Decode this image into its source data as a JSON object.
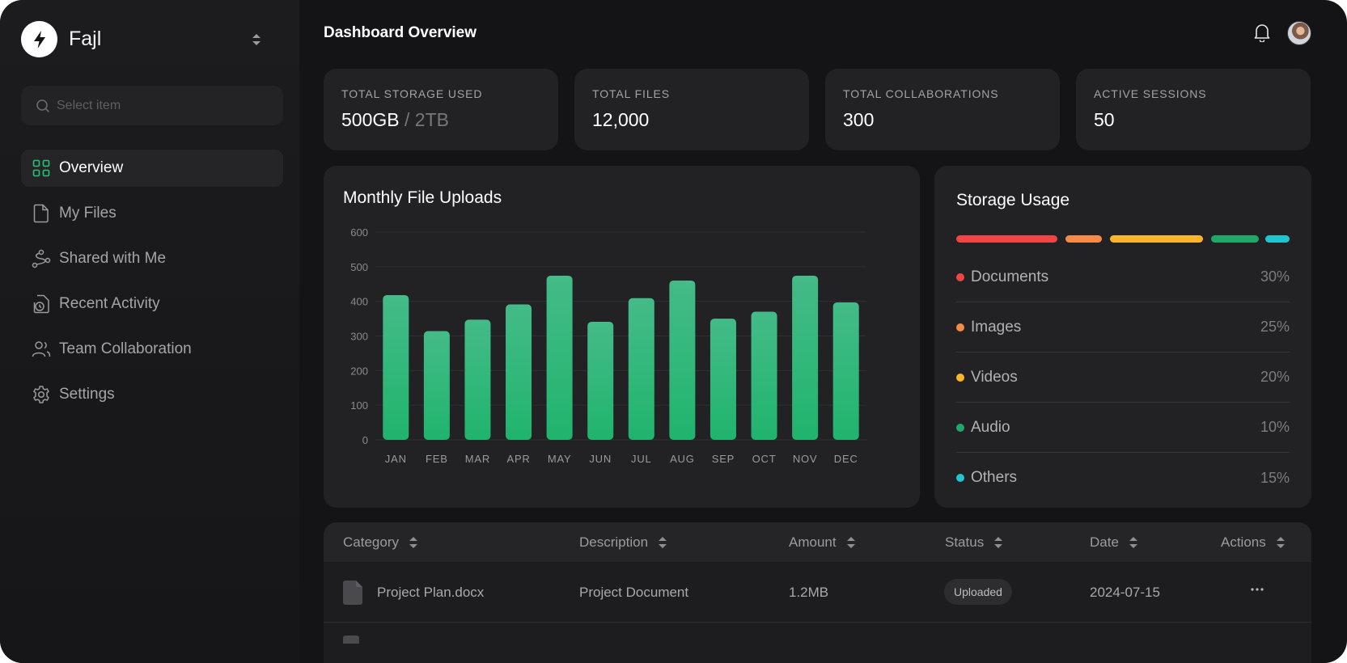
{
  "brand": {
    "name": "Fajl"
  },
  "search": {
    "placeholder": "Select item"
  },
  "nav": [
    {
      "label": "Overview",
      "icon": "grid-icon",
      "active": true
    },
    {
      "label": "My Files",
      "icon": "file-icon"
    },
    {
      "label": "Shared with Me",
      "icon": "share-icon"
    },
    {
      "label": "Recent Activity",
      "icon": "clock-file-icon"
    },
    {
      "label": "Team Collaboration",
      "icon": "users-icon"
    },
    {
      "label": "Settings",
      "icon": "gear-icon"
    }
  ],
  "header": {
    "title": "Dashboard Overview"
  },
  "stats": [
    {
      "label": "TOTAL STORAGE USED",
      "value": "500GB",
      "sub": "/ 2TB"
    },
    {
      "label": "TOTAL FILES",
      "value": "12,000"
    },
    {
      "label": "TOTAL COLLABORATIONS",
      "value": "300"
    },
    {
      "label": "ACTIVE SESSIONS",
      "value": "50"
    }
  ],
  "chart_data": {
    "type": "bar",
    "title": "Monthly File Uploads",
    "categories": [
      "JAN",
      "FEB",
      "MAR",
      "APR",
      "MAY",
      "JUN",
      "JUL",
      "AUG",
      "SEP",
      "OCT",
      "NOV",
      "DEC"
    ],
    "values": [
      418,
      314,
      347,
      391,
      474,
      341,
      409,
      460,
      350,
      370,
      474,
      397
    ],
    "ylim": [
      0,
      600
    ],
    "yticks": [
      "0",
      "100",
      "200",
      "300",
      "400",
      "500",
      "600"
    ],
    "grid": true,
    "bar_color": "#2fbf7a"
  },
  "storage": {
    "title": "Storage Usage",
    "items": [
      {
        "name": "Documents",
        "pct": "30%",
        "color": "#f04545"
      },
      {
        "name": "Images",
        "pct": "25%",
        "color": "#f68a48"
      },
      {
        "name": "Videos",
        "pct": "20%",
        "color": "#fab52a"
      },
      {
        "name": "Audio",
        "pct": "10%",
        "color": "#1fa86a"
      },
      {
        "name": "Others",
        "pct": "15%",
        "color": "#1fc6cf"
      }
    ]
  },
  "table": {
    "headers": [
      "Category",
      "Description",
      "Amount",
      "Status",
      "Date",
      "Actions"
    ],
    "rows": [
      {
        "category": "Project Plan.docx",
        "description": "Project Document",
        "amount": "1.2MB",
        "status": "Uploaded",
        "date": "2024-07-15"
      }
    ]
  }
}
